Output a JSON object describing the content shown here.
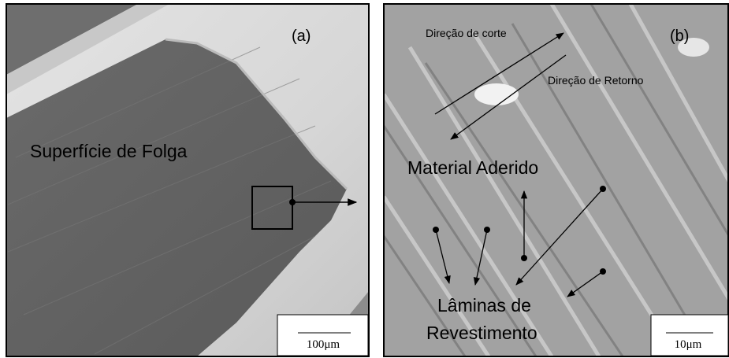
{
  "panels": [
    {
      "label": "(a)",
      "annotations": [
        "Superfície de Folga"
      ],
      "scale_bar": "100μm"
    },
    {
      "label": "(b)",
      "annotations": [
        "Direção de corte",
        "Direção de Retorno",
        "Material Aderido",
        "Lâminas de",
        "Revestimento"
      ],
      "scale_bar": "10μm"
    }
  ]
}
